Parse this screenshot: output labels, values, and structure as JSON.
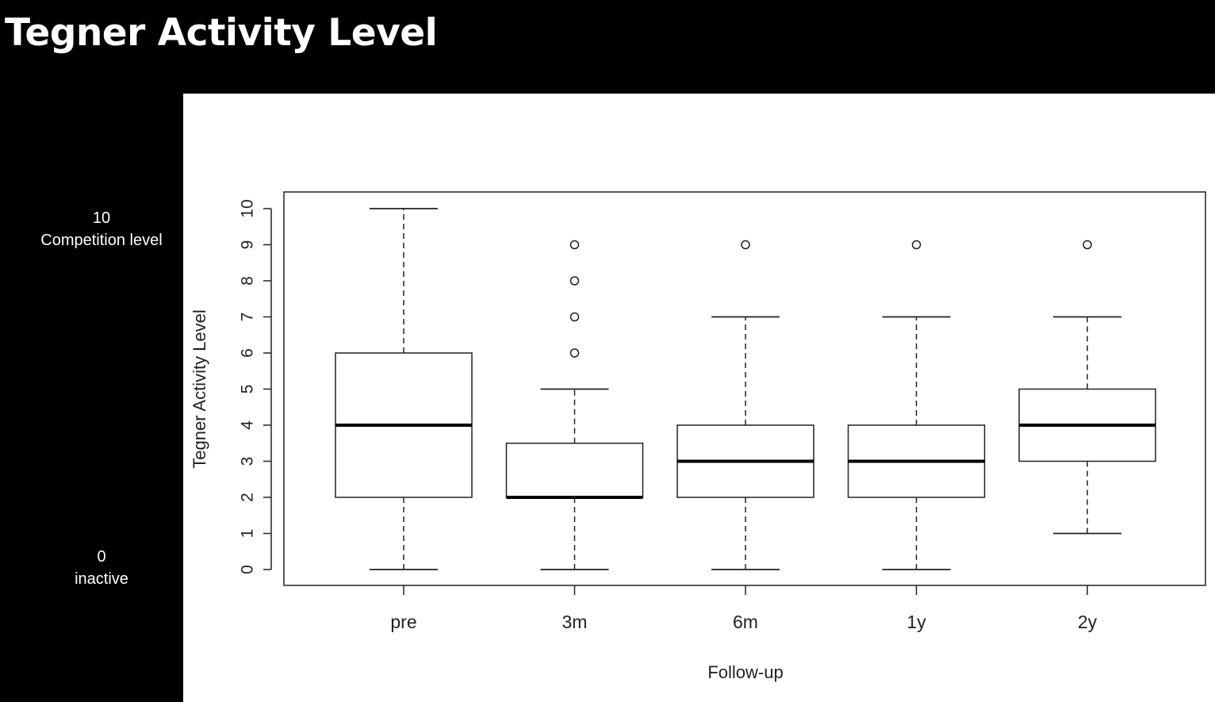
{
  "slide": {
    "title": "Tegner Activity Level",
    "scale_top": {
      "value": "10",
      "label": "Competition level"
    },
    "scale_bottom": {
      "value": "0",
      "label": "inactive"
    }
  },
  "chart_data": {
    "type": "box",
    "title": "",
    "xlabel": "Follow-up",
    "ylabel": "Tegner Activity Level",
    "ylim": [
      0,
      10
    ],
    "yticks": [
      0,
      1,
      2,
      3,
      4,
      5,
      6,
      7,
      8,
      9,
      10
    ],
    "categories": [
      "pre",
      "3m",
      "6m",
      "1y",
      "2y"
    ],
    "boxes": [
      {
        "category": "pre",
        "whisker_low": 0,
        "q1": 2,
        "median": 4,
        "q3": 6,
        "whisker_high": 10,
        "outliers": []
      },
      {
        "category": "3m",
        "whisker_low": 0,
        "q1": 2,
        "median": 2,
        "q3": 3.5,
        "whisker_high": 5,
        "outliers": [
          6,
          7,
          8,
          9
        ]
      },
      {
        "category": "6m",
        "whisker_low": 0,
        "q1": 2,
        "median": 3,
        "q3": 4,
        "whisker_high": 7,
        "outliers": [
          9
        ]
      },
      {
        "category": "1y",
        "whisker_low": 0,
        "q1": 2,
        "median": 3,
        "q3": 4,
        "whisker_high": 7,
        "outliers": [
          9
        ]
      },
      {
        "category": "2y",
        "whisker_low": 1,
        "q1": 3,
        "median": 4,
        "q3": 5,
        "whisker_high": 7,
        "outliers": [
          9
        ]
      }
    ],
    "grid": false,
    "legend": "none"
  }
}
